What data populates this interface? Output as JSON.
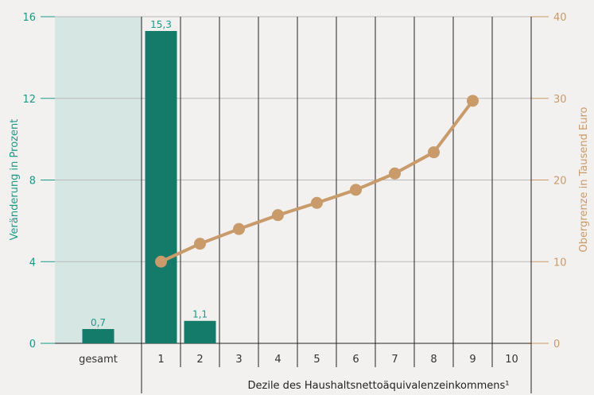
{
  "chart_data": {
    "type": "bar+line",
    "categories": [
      "gesamt",
      "1",
      "2",
      "3",
      "4",
      "5",
      "6",
      "7",
      "8",
      "9",
      "10"
    ],
    "bar_series": {
      "values": [
        0.7,
        15.3,
        1.1,
        null,
        null,
        null,
        null,
        null,
        null,
        null,
        null
      ],
      "labels": [
        "0,7",
        "15,3",
        "1,1"
      ],
      "color": "#147a69"
    },
    "line_series": {
      "values": [
        null,
        10.0,
        12.2,
        14.0,
        15.7,
        17.2,
        18.8,
        20.8,
        23.4,
        29.7,
        null
      ],
      "color": "#c99a6a"
    },
    "highlight_color": "#d6e6e2",
    "xlabel": "Dezile des Haushaltsnettoäquivalenzeinkommens¹",
    "ylabel_left": "Veränderung in Prozent",
    "ylabel_right": "Obergrenze in Tausend Euro",
    "ylim_left": [
      0,
      16
    ],
    "ylim_right": [
      0,
      40
    ],
    "yticks_left": [
      "0",
      "4",
      "8",
      "12",
      "16"
    ],
    "yticks_right": [
      "0",
      "10",
      "20",
      "30",
      "40"
    ],
    "grid": true
  }
}
